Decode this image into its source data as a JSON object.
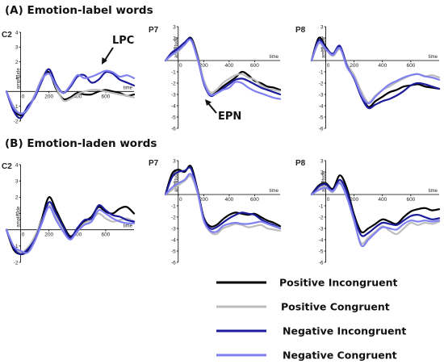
{
  "panel_titles": {
    "A": "(A) Emotion-label words",
    "B": "(B) Emotion-laden words"
  },
  "annotations": {
    "lpc": "LPC",
    "epn": "EPN"
  },
  "axis_names": {
    "amplitude": "amplitude",
    "time": "time"
  },
  "colors": {
    "Positive Incongruent": "#000000",
    "Positive Congruent": "#bdbdbd",
    "Negative Incongruent": "#1c1c9c",
    "Negative Congruent": "#8080f0"
  },
  "legend": [
    {
      "name": "Positive Incongruent",
      "color": "#000000"
    },
    {
      "name": "Positive Congruent",
      "color": "#bdbdbd"
    },
    {
      "name": "Negative Incongruent",
      "color": "#1c1c9c"
    },
    {
      "name": "Negative Congruent",
      "color": "#8080f0"
    }
  ],
  "chart_data": [
    {
      "type": "line",
      "panel": "A",
      "channel": "C2",
      "xlim": [
        -100,
        800
      ],
      "ylim": [
        -2,
        4
      ],
      "xticks": [
        0,
        200,
        400,
        600
      ],
      "yticks": [
        4,
        3,
        2,
        1,
        -1,
        -2
      ],
      "x": [
        -100,
        -50,
        0,
        50,
        100,
        150,
        200,
        250,
        300,
        350,
        400,
        450,
        500,
        550,
        600,
        650,
        700,
        750,
        800
      ],
      "series": [
        {
          "name": "Positive Incongruent",
          "values": [
            0,
            -1.2,
            -1.6,
            -1.2,
            -0.3,
            0.8,
            1.3,
            0.2,
            -0.5,
            -0.4,
            -0.1,
            -0.2,
            -0.2,
            0,
            0.1,
            0,
            -0.1,
            -0.3,
            -0.2
          ]
        },
        {
          "name": "Positive Congruent",
          "values": [
            0,
            -1.0,
            -1.5,
            -1.1,
            -0.2,
            0.9,
            1.5,
            0.3,
            -0.6,
            -0.5,
            -0.2,
            0,
            0.1,
            0.1,
            0,
            -0.1,
            -0.2,
            -0.3,
            -0.4
          ]
        },
        {
          "name": "Negative Incongruent",
          "values": [
            0,
            -1.3,
            -1.8,
            -1.0,
            -0.4,
            0.7,
            1.5,
            0.5,
            -0.1,
            0.3,
            1.0,
            1.1,
            0.6,
            0.8,
            1.3,
            1.2,
            0.8,
            0.6,
            0.4
          ]
        },
        {
          "name": "Negative Congruent",
          "values": [
            0,
            -1.1,
            -1.5,
            -1.2,
            -0.3,
            0.8,
            1.2,
            0.4,
            -0.1,
            0.4,
            1.1,
            0.9,
            1.0,
            1.2,
            1.4,
            1.3,
            1.0,
            1.1,
            0.9
          ]
        }
      ]
    },
    {
      "type": "line",
      "panel": "A",
      "channel": "P7",
      "xlim": [
        -100,
        800
      ],
      "ylim": [
        -6,
        3
      ],
      "xticks": [
        0,
        200,
        400,
        600
      ],
      "yticks": [
        3,
        2,
        1,
        -1,
        -2,
        -3,
        -4,
        -5,
        -6
      ],
      "x": [
        -100,
        -50,
        0,
        50,
        100,
        150,
        200,
        250,
        300,
        350,
        400,
        450,
        500,
        550,
        600,
        650,
        700,
        750,
        800
      ],
      "series": [
        {
          "name": "Positive Incongruent",
          "values": [
            0,
            0.6,
            1.0,
            1.5,
            2.0,
            0.5,
            -1.8,
            -3.0,
            -2.8,
            -2.3,
            -1.9,
            -1.5,
            -1.0,
            -1.3,
            -1.8,
            -2.0,
            -2.3,
            -2.4,
            -2.6
          ]
        },
        {
          "name": "Positive Congruent",
          "values": [
            0,
            0.5,
            0.8,
            1.4,
            1.9,
            0.4,
            -1.7,
            -2.8,
            -2.6,
            -2.0,
            -1.6,
            -1.3,
            -1.2,
            -1.5,
            -1.7,
            -2.2,
            -2.5,
            -2.6,
            -2.7
          ]
        },
        {
          "name": "Negative Incongruent",
          "values": [
            0,
            0.7,
            1.1,
            1.6,
            1.9,
            0.3,
            -2.0,
            -3.1,
            -2.9,
            -2.5,
            -2.1,
            -1.7,
            -1.6,
            -1.8,
            -2.1,
            -2.4,
            -2.6,
            -2.8,
            -3.0
          ]
        },
        {
          "name": "Negative Congruent",
          "values": [
            0,
            0.5,
            0.9,
            1.4,
            1.8,
            0.2,
            -1.9,
            -3.0,
            -2.9,
            -2.6,
            -2.4,
            -1.9,
            -2.0,
            -2.4,
            -2.7,
            -2.9,
            -3.1,
            -3.3,
            -3.4
          ]
        }
      ]
    },
    {
      "type": "line",
      "panel": "A",
      "channel": "P8",
      "xlim": [
        -100,
        800
      ],
      "ylim": [
        -6,
        3
      ],
      "xticks": [
        0,
        200,
        400,
        600
      ],
      "yticks": [
        3,
        2,
        1,
        -1,
        -2,
        -3,
        -4,
        -5,
        -6
      ],
      "x": [
        -100,
        -50,
        0,
        50,
        100,
        150,
        200,
        250,
        300,
        350,
        400,
        450,
        500,
        550,
        600,
        650,
        700,
        750,
        800
      ],
      "series": [
        {
          "name": "Positive Incongruent",
          "values": [
            0,
            2.0,
            1.2,
            0.5,
            1.2,
            -0.4,
            -1.5,
            -3.0,
            -4.1,
            -3.6,
            -3.2,
            -2.8,
            -2.6,
            -2.3,
            -2.2,
            -2.1,
            -2.3,
            -2.4,
            -2.5
          ]
        },
        {
          "name": "Positive Congruent",
          "values": [
            0,
            1.5,
            1.0,
            0.4,
            1.0,
            -0.3,
            -1.3,
            -2.7,
            -3.7,
            -3.1,
            -2.6,
            -2.3,
            -1.9,
            -1.6,
            -1.3,
            -1.2,
            -1.4,
            -1.3,
            -1.5
          ]
        },
        {
          "name": "Negative Incongruent",
          "values": [
            0,
            1.8,
            1.1,
            0.6,
            1.3,
            -0.5,
            -1.6,
            -3.2,
            -4.2,
            -3.9,
            -3.6,
            -3.4,
            -3.1,
            -2.7,
            -2.2,
            -2.0,
            -2.1,
            -2.3,
            -2.5
          ]
        },
        {
          "name": "Negative Congruent",
          "values": [
            0,
            1.6,
            1.0,
            0.5,
            1.1,
            -0.6,
            -1.5,
            -3.0,
            -3.8,
            -3.2,
            -2.6,
            -2.1,
            -1.8,
            -1.5,
            -1.3,
            -1.2,
            -1.4,
            -1.5,
            -1.7
          ]
        }
      ]
    },
    {
      "type": "line",
      "panel": "B",
      "channel": "C2",
      "xlim": [
        -100,
        800
      ],
      "ylim": [
        -2,
        4
      ],
      "xticks": [
        0,
        200,
        400,
        600
      ],
      "yticks": [
        4,
        3,
        2,
        1,
        -1,
        -2
      ],
      "x": [
        -100,
        -50,
        0,
        50,
        100,
        150,
        200,
        250,
        300,
        350,
        400,
        450,
        500,
        550,
        600,
        650,
        700,
        750,
        800
      ],
      "series": [
        {
          "name": "Positive Incongruent",
          "values": [
            0,
            -1.2,
            -1.5,
            -1.3,
            -0.5,
            0.7,
            2.0,
            1.2,
            0.3,
            -0.4,
            0,
            0.5,
            0.8,
            1.4,
            1.1,
            1.0,
            1.3,
            1.4,
            1.0
          ]
        },
        {
          "name": "Positive Congruent",
          "values": [
            0,
            -1.0,
            -1.4,
            -1.1,
            -0.4,
            0.6,
            1.5,
            0.8,
            0.1,
            -0.5,
            -0.1,
            0.4,
            0.6,
            1.0,
            0.7,
            0.5,
            0.6,
            0.7,
            0.5
          ]
        },
        {
          "name": "Negative Incongruent",
          "values": [
            0,
            -1.1,
            -1.5,
            -1.2,
            -0.6,
            0.5,
            1.7,
            1.0,
            0.2,
            -0.5,
            0.1,
            0.6,
            0.7,
            1.5,
            1.2,
            0.9,
            0.8,
            0.6,
            0.5
          ]
        },
        {
          "name": "Negative Congruent",
          "values": [
            0,
            -1.0,
            -1.3,
            -1.4,
            -0.7,
            0.4,
            1.4,
            0.6,
            -0.1,
            -0.6,
            -0.1,
            0.3,
            0.5,
            1.2,
            1.0,
            0.7,
            0.5,
            0.4,
            0.4
          ]
        }
      ]
    },
    {
      "type": "line",
      "panel": "B",
      "channel": "P7",
      "xlim": [
        -100,
        800
      ],
      "ylim": [
        -6,
        3
      ],
      "xticks": [
        0,
        200,
        400,
        600
      ],
      "yticks": [
        3,
        2,
        1,
        -1,
        -2,
        -3,
        -4,
        -5,
        -6
      ],
      "x": [
        -100,
        -50,
        0,
        50,
        100,
        150,
        200,
        250,
        300,
        350,
        400,
        450,
        500,
        550,
        600,
        650,
        700,
        750,
        800
      ],
      "series": [
        {
          "name": "Positive Incongruent",
          "values": [
            0,
            1.8,
            2.2,
            2.0,
            2.5,
            0.5,
            -2.0,
            -2.8,
            -2.7,
            -2.2,
            -1.8,
            -1.6,
            -1.7,
            -1.8,
            -1.7,
            -2.0,
            -2.3,
            -2.5,
            -2.8
          ]
        },
        {
          "name": "Positive Congruent",
          "values": [
            0,
            0.4,
            0.8,
            1.2,
            1.6,
            0.2,
            -2.2,
            -3.3,
            -3.5,
            -3.0,
            -2.8,
            -2.6,
            -2.7,
            -2.9,
            -2.8,
            -2.7,
            -3.0,
            -3.1,
            -3.2
          ]
        },
        {
          "name": "Negative Incongruent",
          "values": [
            0,
            1.5,
            2.0,
            2.1,
            2.3,
            0.4,
            -2.1,
            -3.0,
            -2.9,
            -2.5,
            -2.1,
            -1.8,
            -1.6,
            -1.7,
            -1.8,
            -2.2,
            -2.5,
            -2.7,
            -3.0
          ]
        },
        {
          "name": "Negative Congruent",
          "values": [
            0,
            0.6,
            1.0,
            1.3,
            1.8,
            0.3,
            -2.3,
            -3.2,
            -3.3,
            -2.8,
            -2.6,
            -2.5,
            -2.6,
            -2.6,
            -2.5,
            -2.4,
            -2.6,
            -2.8,
            -3.0
          ]
        }
      ]
    },
    {
      "type": "line",
      "panel": "B",
      "channel": "P8",
      "xlim": [
        -100,
        800
      ],
      "ylim": [
        -6,
        3
      ],
      "xticks": [
        0,
        200,
        400,
        600
      ],
      "yticks": [
        3,
        2,
        1,
        -1,
        -2,
        -3,
        -4,
        -5,
        -6
      ],
      "x": [
        -100,
        -50,
        0,
        50,
        100,
        150,
        200,
        250,
        300,
        350,
        400,
        450,
        500,
        550,
        600,
        650,
        700,
        750,
        800
      ],
      "series": [
        {
          "name": "Positive Incongruent",
          "values": [
            0,
            0.8,
            1.0,
            0.5,
            1.7,
            0.5,
            -1.8,
            -3.3,
            -3.0,
            -2.6,
            -2.2,
            -2.4,
            -2.6,
            -2.0,
            -1.5,
            -1.3,
            -1.2,
            -1.4,
            -1.3
          ]
        },
        {
          "name": "Positive Congruent",
          "values": [
            0,
            0.5,
            0.7,
            0.2,
            1.1,
            -0.2,
            -2.4,
            -4.3,
            -3.8,
            -3.3,
            -2.8,
            -3.2,
            -3.5,
            -3.0,
            -2.5,
            -2.7,
            -2.5,
            -2.6,
            -2.4
          ]
        },
        {
          "name": "Negative Incongruent",
          "values": [
            0,
            0.7,
            0.9,
            0.4,
            1.3,
            0.2,
            -2.0,
            -3.6,
            -3.4,
            -2.9,
            -2.5,
            -2.6,
            -2.7,
            -2.3,
            -1.9,
            -1.8,
            -2.0,
            -2.2,
            -2.1
          ]
        },
        {
          "name": "Negative Congruent",
          "values": [
            0,
            0.4,
            0.6,
            0.3,
            1.0,
            -0.3,
            -2.3,
            -4.5,
            -4.0,
            -3.4,
            -2.9,
            -3.0,
            -3.1,
            -2.6,
            -2.3,
            -2.4,
            -2.3,
            -2.4,
            -2.3
          ]
        }
      ]
    }
  ]
}
